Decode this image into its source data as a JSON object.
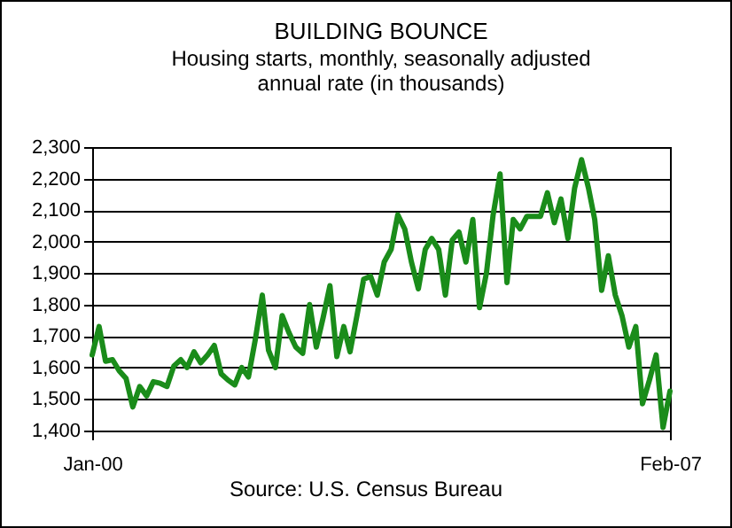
{
  "chart_data": {
    "type": "line",
    "title": "BUILDING BOUNCE",
    "subtitle": "Housing starts, monthly, seasonally adjusted annual rate (in thousands)",
    "annotations": [
      "Source: U.S. Census Bureau"
    ],
    "x": [
      "2000-01",
      "2000-02",
      "2000-03",
      "2000-04",
      "2000-05",
      "2000-06",
      "2000-07",
      "2000-08",
      "2000-09",
      "2000-10",
      "2000-11",
      "2000-12",
      "2001-01",
      "2001-02",
      "2001-03",
      "2001-04",
      "2001-05",
      "2001-06",
      "2001-07",
      "2001-08",
      "2001-09",
      "2001-10",
      "2001-11",
      "2001-12",
      "2002-01",
      "2002-02",
      "2002-03",
      "2002-04",
      "2002-05",
      "2002-06",
      "2002-07",
      "2002-08",
      "2002-09",
      "2002-10",
      "2002-11",
      "2002-12",
      "2003-01",
      "2003-02",
      "2003-03",
      "2003-04",
      "2003-05",
      "2003-06",
      "2003-07",
      "2003-08",
      "2003-09",
      "2003-10",
      "2003-11",
      "2003-12",
      "2004-01",
      "2004-02",
      "2004-03",
      "2004-04",
      "2004-05",
      "2004-06",
      "2004-07",
      "2004-08",
      "2004-09",
      "2004-10",
      "2004-11",
      "2004-12",
      "2005-01",
      "2005-02",
      "2005-03",
      "2005-04",
      "2005-05",
      "2005-06",
      "2005-07",
      "2005-08",
      "2005-09",
      "2005-10",
      "2005-11",
      "2005-12",
      "2006-01",
      "2006-02",
      "2006-03",
      "2006-04",
      "2006-05",
      "2006-06",
      "2006-07",
      "2006-08",
      "2006-09",
      "2006-10",
      "2006-11",
      "2006-12",
      "2007-01",
      "2007-02"
    ],
    "series": [
      {
        "color": "#1a8c1a",
        "values": [
          1640,
          1730,
          1620,
          1625,
          1590,
          1565,
          1475,
          1540,
          1510,
          1555,
          1550,
          1540,
          1605,
          1625,
          1600,
          1650,
          1615,
          1640,
          1670,
          1580,
          1560,
          1545,
          1600,
          1570,
          1690,
          1830,
          1655,
          1600,
          1765,
          1710,
          1665,
          1645,
          1800,
          1665,
          1760,
          1860,
          1635,
          1730,
          1650,
          1765,
          1880,
          1890,
          1830,
          1935,
          1975,
          2085,
          2040,
          1935,
          1850,
          1975,
          2010,
          1975,
          1830,
          2005,
          2030,
          1935,
          2070,
          1790,
          1900,
          2085,
          2215,
          1870,
          2070,
          2040,
          2080,
          2080,
          2080,
          2155,
          2060,
          2135,
          2010,
          2170,
          2260,
          2170,
          2070,
          1845,
          1955,
          1830,
          1765,
          1665,
          1730,
          1485,
          1560,
          1640,
          1410,
          1525
        ]
      }
    ],
    "xlim": [
      "2000-01",
      "2007-02"
    ],
    "xticks": [
      {
        "value": "2000-01",
        "label": "Jan-00"
      },
      {
        "value": "2007-02",
        "label": "Feb-07"
      }
    ],
    "ylim": [
      1400,
      2300
    ],
    "yticks": [
      {
        "value": 1400,
        "label": "1,400"
      },
      {
        "value": 1500,
        "label": "1,500"
      },
      {
        "value": 1600,
        "label": "1,600"
      },
      {
        "value": 1700,
        "label": "1,700"
      },
      {
        "value": 1800,
        "label": "1,800"
      },
      {
        "value": 1900,
        "label": "1,900"
      },
      {
        "value": 2000,
        "label": "2,000"
      },
      {
        "value": 2100,
        "label": "2,100"
      },
      {
        "value": 2200,
        "label": "2,200"
      },
      {
        "value": 2300,
        "label": "2,300"
      }
    ],
    "grid": "y",
    "legend": false,
    "marker": "none",
    "line_style": "solid"
  }
}
